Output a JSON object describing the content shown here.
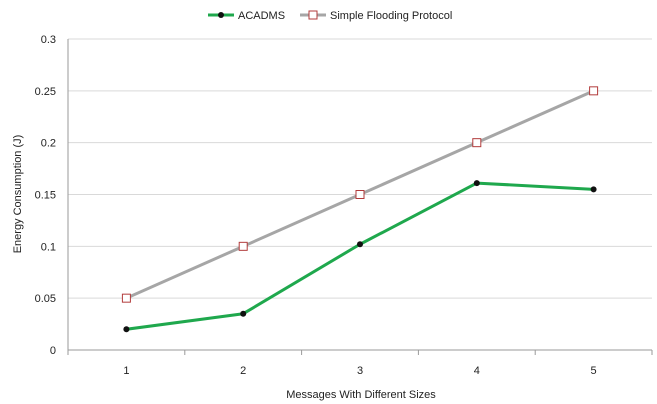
{
  "chart_data": {
    "type": "line",
    "title": "",
    "xlabel": "Messages With Different Sizes",
    "ylabel": "Energy Consumption (J)",
    "x": [
      1,
      2,
      3,
      4,
      5
    ],
    "ylim": [
      0,
      0.3
    ],
    "yticks": [
      0,
      0.05,
      0.1,
      0.15,
      0.2,
      0.25,
      0.3
    ],
    "grid": true,
    "legend_position": "top",
    "series": [
      {
        "name": "ACADMS",
        "values": [
          0.02,
          0.035,
          0.102,
          0.161,
          0.155
        ],
        "line_color": "#1fa84d",
        "marker": "filled-circle",
        "marker_color": "#111111"
      },
      {
        "name": "Simple Flooding Protocol",
        "values": [
          0.05,
          0.1,
          0.15,
          0.2,
          0.25
        ],
        "line_color": "#a6a6a6",
        "marker": "open-square",
        "marker_color": "#b23b3b"
      }
    ]
  }
}
